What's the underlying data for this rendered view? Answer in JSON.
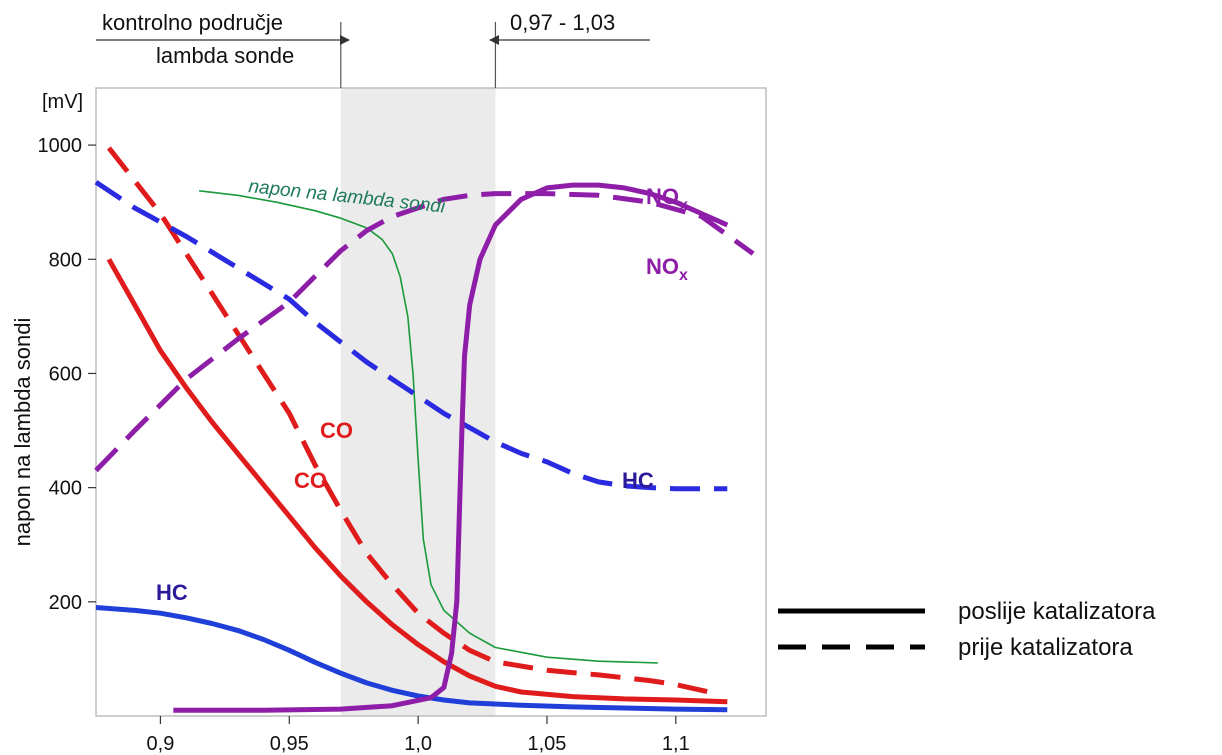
{
  "chart_data": {
    "type": "line",
    "ylabel": "napon na lambda sondi",
    "y_unit": "[mV]",
    "yticks": [
      "200",
      "400",
      "600",
      "800",
      "1000"
    ],
    "xticks": [
      "0,9",
      "0,95",
      "1,0",
      "1,05",
      "1,1"
    ],
    "xlim": [
      0.875,
      1.135
    ],
    "ylim": [
      0,
      1100
    ],
    "control_band": {
      "from": 0.97,
      "to": 1.03,
      "label_left_line1": "kontrolno područje",
      "label_left_line2": "lambda sonde",
      "label_right": "0,97 - 1,03"
    },
    "legend": {
      "solid": "poslije katalizatora",
      "dashed": "prije katalizatora"
    },
    "series": [
      {
        "name": "napon na lambda sondi",
        "style": "thin",
        "color": "#1a9a3a",
        "points": [
          [
            0.915,
            920
          ],
          [
            0.93,
            912
          ],
          [
            0.945,
            900
          ],
          [
            0.96,
            885
          ],
          [
            0.97,
            872
          ],
          [
            0.98,
            855
          ],
          [
            0.986,
            835
          ],
          [
            0.99,
            810
          ],
          [
            0.993,
            770
          ],
          [
            0.996,
            700
          ],
          [
            0.998,
            600
          ],
          [
            1.0,
            450
          ],
          [
            1.002,
            310
          ],
          [
            1.005,
            230
          ],
          [
            1.01,
            185
          ],
          [
            1.02,
            145
          ],
          [
            1.03,
            120
          ],
          [
            1.05,
            103
          ],
          [
            1.07,
            96
          ],
          [
            1.093,
            93
          ]
        ]
      },
      {
        "name": "CO",
        "style": "dashed",
        "color": "#e01b1b",
        "points": [
          [
            0.88,
            995
          ],
          [
            0.9,
            880
          ],
          [
            0.92,
            740
          ],
          [
            0.94,
            600
          ],
          [
            0.95,
            530
          ],
          [
            0.96,
            440
          ],
          [
            0.97,
            360
          ],
          [
            0.98,
            285
          ],
          [
            0.99,
            230
          ],
          [
            1.0,
            180
          ],
          [
            1.01,
            145
          ],
          [
            1.02,
            115
          ],
          [
            1.03,
            95
          ],
          [
            1.05,
            80
          ],
          [
            1.07,
            72
          ],
          [
            1.09,
            62
          ],
          [
            1.1,
            55
          ],
          [
            1.115,
            40
          ]
        ]
      },
      {
        "name": "CO",
        "style": "solid",
        "color": "#e01b1b",
        "points": [
          [
            0.88,
            800
          ],
          [
            0.89,
            720
          ],
          [
            0.9,
            640
          ],
          [
            0.91,
            575
          ],
          [
            0.92,
            515
          ],
          [
            0.93,
            460
          ],
          [
            0.94,
            405
          ],
          [
            0.95,
            350
          ],
          [
            0.96,
            295
          ],
          [
            0.97,
            245
          ],
          [
            0.98,
            200
          ],
          [
            0.99,
            160
          ],
          [
            1.0,
            125
          ],
          [
            1.01,
            95
          ],
          [
            1.02,
            70
          ],
          [
            1.03,
            52
          ],
          [
            1.04,
            42
          ],
          [
            1.06,
            34
          ],
          [
            1.08,
            30
          ],
          [
            1.1,
            28
          ],
          [
            1.12,
            25
          ]
        ]
      },
      {
        "name": "HC",
        "style": "dashed",
        "color": "#2a2ae0",
        "points": [
          [
            0.875,
            935
          ],
          [
            0.89,
            890
          ],
          [
            0.91,
            840
          ],
          [
            0.93,
            785
          ],
          [
            0.95,
            730
          ],
          [
            0.96,
            690
          ],
          [
            0.97,
            655
          ],
          [
            0.98,
            620
          ],
          [
            0.99,
            590
          ],
          [
            1.0,
            560
          ],
          [
            1.01,
            530
          ],
          [
            1.02,
            505
          ],
          [
            1.03,
            480
          ],
          [
            1.04,
            460
          ],
          [
            1.05,
            445
          ],
          [
            1.06,
            425
          ],
          [
            1.07,
            410
          ],
          [
            1.08,
            403
          ],
          [
            1.09,
            400
          ],
          [
            1.1,
            398
          ],
          [
            1.12,
            398
          ]
        ]
      },
      {
        "name": "HC",
        "style": "solid",
        "color": "#1f3fd8",
        "points": [
          [
            0.875,
            190
          ],
          [
            0.89,
            185
          ],
          [
            0.9,
            180
          ],
          [
            0.91,
            172
          ],
          [
            0.92,
            162
          ],
          [
            0.93,
            150
          ],
          [
            0.94,
            134
          ],
          [
            0.95,
            115
          ],
          [
            0.96,
            94
          ],
          [
            0.97,
            75
          ],
          [
            0.98,
            58
          ],
          [
            0.99,
            45
          ],
          [
            1.0,
            35
          ],
          [
            1.01,
            28
          ],
          [
            1.02,
            23
          ],
          [
            1.04,
            19
          ],
          [
            1.06,
            16
          ],
          [
            1.08,
            14
          ],
          [
            1.1,
            12
          ],
          [
            1.12,
            11
          ]
        ]
      },
      {
        "name": "NOx",
        "style": "dashed",
        "color": "#8e1ea8",
        "points": [
          [
            0.875,
            430
          ],
          [
            0.89,
            500
          ],
          [
            0.91,
            590
          ],
          [
            0.93,
            660
          ],
          [
            0.95,
            725
          ],
          [
            0.96,
            770
          ],
          [
            0.97,
            815
          ],
          [
            0.98,
            850
          ],
          [
            0.99,
            875
          ],
          [
            1.0,
            890
          ],
          [
            1.01,
            905
          ],
          [
            1.02,
            912
          ],
          [
            1.03,
            915
          ],
          [
            1.05,
            915
          ],
          [
            1.07,
            912
          ],
          [
            1.09,
            900
          ],
          [
            1.11,
            875
          ],
          [
            1.13,
            810
          ]
        ]
      },
      {
        "name": "NOx",
        "style": "solid",
        "color": "#8e1ea8",
        "points": [
          [
            0.905,
            10
          ],
          [
            0.94,
            10
          ],
          [
            0.97,
            12
          ],
          [
            0.99,
            18
          ],
          [
            1.005,
            32
          ],
          [
            1.01,
            50
          ],
          [
            1.013,
            110
          ],
          [
            1.015,
            200
          ],
          [
            1.016,
            350
          ],
          [
            1.017,
            500
          ],
          [
            1.018,
            630
          ],
          [
            1.02,
            720
          ],
          [
            1.024,
            800
          ],
          [
            1.03,
            860
          ],
          [
            1.04,
            905
          ],
          [
            1.05,
            925
          ],
          [
            1.06,
            930
          ],
          [
            1.07,
            930
          ],
          [
            1.08,
            925
          ],
          [
            1.09,
            915
          ],
          [
            1.1,
            900
          ],
          [
            1.11,
            880
          ],
          [
            1.12,
            860
          ]
        ]
      }
    ],
    "labels": [
      {
        "text": "CO",
        "color": "#e01b1b",
        "x": 1.0,
        "y": 1.0
      },
      {
        "text": "CO",
        "color": "#e01b1b",
        "x": 1.0,
        "y": 1.0
      },
      {
        "text": "HC",
        "color": "#2a1a9a",
        "x": 1.0,
        "y": 1.0
      },
      {
        "text": "HC",
        "color": "#2a1a9a",
        "x": 1.0,
        "y": 1.0
      },
      {
        "text": "NO",
        "sub": "x",
        "color": "#8e1ea8",
        "x": 1.0,
        "y": 1.0
      },
      {
        "text": "NO",
        "sub": "x",
        "color": "#8e1ea8",
        "x": 1.0,
        "y": 1.0
      }
    ]
  }
}
